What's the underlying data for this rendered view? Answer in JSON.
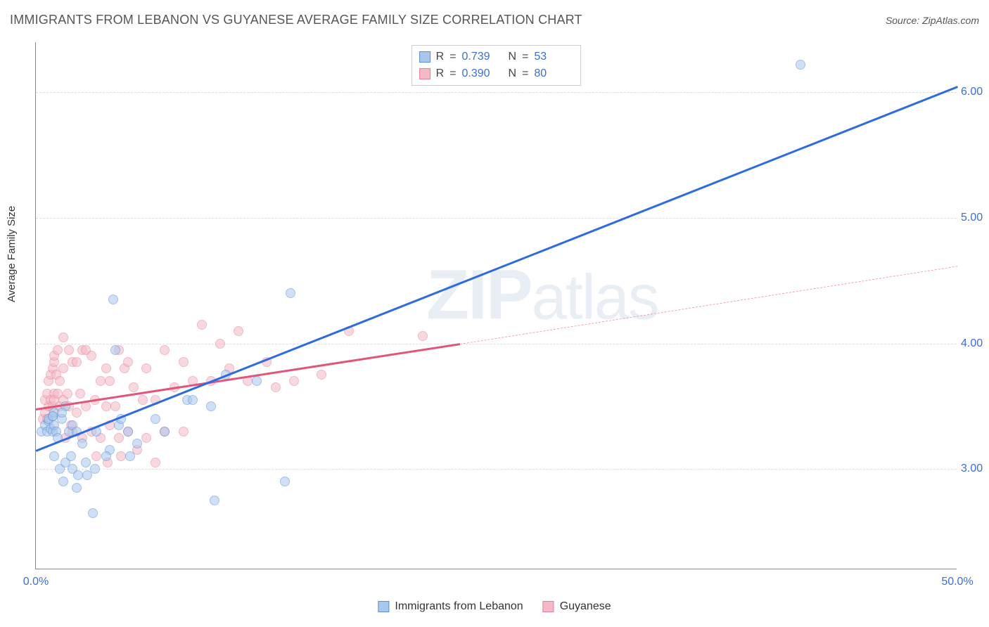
{
  "title": "IMMIGRANTS FROM LEBANON VS GUYANESE AVERAGE FAMILY SIZE CORRELATION CHART",
  "source_prefix": "Source: ",
  "source_name": "ZipAtlas.com",
  "y_axis_label": "Average Family Size",
  "watermark": "ZIPatlas",
  "chart": {
    "type": "scatter",
    "background_color": "#ffffff",
    "grid_color": "#dddddd",
    "axis_color": "#888888",
    "xlim": [
      0,
      50
    ],
    "ylim": [
      2.2,
      6.4
    ],
    "x_ticks": [
      {
        "v": 0,
        "label": "0.0%"
      },
      {
        "v": 50,
        "label": "50.0%"
      }
    ],
    "y_ticks": [
      {
        "v": 3.0,
        "label": "3.00"
      },
      {
        "v": 4.0,
        "label": "4.00"
      },
      {
        "v": 5.0,
        "label": "5.00"
      },
      {
        "v": 6.0,
        "label": "6.00"
      }
    ],
    "tick_color": "#3b6fd6",
    "tick_fontsize": 16
  },
  "series": [
    {
      "name": "Immigrants from Lebanon",
      "color_fill": "#a9c6ed",
      "color_stroke": "#5b8fd8",
      "marker_size": 14,
      "R": "0.739",
      "N": "53",
      "trend": {
        "x1": 0,
        "y1": 3.15,
        "x2": 50,
        "y2": 6.05,
        "color": "#2d6cdf",
        "width": 2.5,
        "dashed": false
      },
      "points": [
        [
          0.3,
          3.3
        ],
        [
          0.5,
          3.35
        ],
        [
          0.6,
          3.3
        ],
        [
          0.7,
          3.38
        ],
        [
          0.8,
          3.32
        ],
        [
          0.9,
          3.3
        ],
        [
          1.0,
          3.35
        ],
        [
          1.1,
          3.3
        ],
        [
          1.2,
          3.25
        ],
        [
          0.7,
          3.4
        ],
        [
          0.9,
          3.42
        ],
        [
          1.4,
          3.4
        ],
        [
          1.0,
          3.45
        ],
        [
          1.6,
          3.5
        ],
        [
          1.8,
          3.3
        ],
        [
          2.0,
          3.35
        ],
        [
          2.5,
          3.2
        ],
        [
          2.2,
          3.3
        ],
        [
          1.0,
          3.1
        ],
        [
          1.3,
          3.0
        ],
        [
          1.6,
          3.05
        ],
        [
          2.0,
          3.0
        ],
        [
          2.3,
          2.95
        ],
        [
          2.8,
          2.95
        ],
        [
          3.2,
          3.0
        ],
        [
          4.0,
          3.15
        ],
        [
          4.5,
          3.35
        ],
        [
          3.1,
          2.65
        ],
        [
          2.2,
          2.85
        ],
        [
          1.5,
          2.9
        ],
        [
          4.2,
          4.35
        ],
        [
          8.2,
          3.55
        ],
        [
          8.5,
          3.55
        ],
        [
          9.5,
          3.5
        ],
        [
          10.3,
          3.75
        ],
        [
          12.0,
          3.7
        ],
        [
          13.8,
          4.4
        ],
        [
          13.5,
          2.9
        ],
        [
          9.7,
          2.75
        ],
        [
          5.0,
          3.3
        ],
        [
          5.5,
          3.2
        ],
        [
          6.5,
          3.4
        ],
        [
          7.0,
          3.3
        ],
        [
          3.8,
          3.1
        ],
        [
          3.3,
          3.3
        ],
        [
          4.3,
          3.95
        ],
        [
          1.4,
          3.45
        ],
        [
          0.9,
          3.42
        ],
        [
          1.9,
          3.1
        ],
        [
          2.7,
          3.05
        ],
        [
          5.1,
          3.1
        ],
        [
          4.6,
          3.4
        ],
        [
          41.5,
          6.22
        ]
      ]
    },
    {
      "name": "Guyanese",
      "color_fill": "#f4b9c5",
      "color_stroke": "#e87f98",
      "marker_size": 14,
      "R": "0.390",
      "N": "80",
      "trend_solid": {
        "x1": 0,
        "y1": 3.48,
        "x2": 23,
        "y2": 4.0,
        "color": "#e25578",
        "width": 2.5,
        "dashed": false
      },
      "trend_dashed": {
        "x1": 23,
        "y1": 4.0,
        "x2": 50,
        "y2": 4.62,
        "color": "#f2a3b6",
        "width": 1.5,
        "dashed": true
      },
      "points": [
        [
          0.4,
          3.4
        ],
        [
          0.5,
          3.45
        ],
        [
          0.6,
          3.4
        ],
        [
          0.7,
          3.5
        ],
        [
          0.5,
          3.55
        ],
        [
          0.6,
          3.6
        ],
        [
          0.8,
          3.55
        ],
        [
          0.9,
          3.5
        ],
        [
          1.0,
          3.6
        ],
        [
          1.0,
          3.55
        ],
        [
          1.2,
          3.6
        ],
        [
          0.7,
          3.7
        ],
        [
          0.8,
          3.75
        ],
        [
          0.9,
          3.8
        ],
        [
          1.0,
          3.85
        ],
        [
          1.1,
          3.75
        ],
        [
          1.3,
          3.7
        ],
        [
          1.5,
          3.8
        ],
        [
          1.3,
          3.5
        ],
        [
          1.5,
          3.55
        ],
        [
          1.7,
          3.6
        ],
        [
          1.8,
          3.5
        ],
        [
          1.0,
          3.9
        ],
        [
          1.2,
          3.95
        ],
        [
          1.5,
          4.05
        ],
        [
          1.8,
          3.95
        ],
        [
          2.0,
          3.85
        ],
        [
          2.2,
          3.85
        ],
        [
          2.5,
          3.95
        ],
        [
          2.7,
          3.95
        ],
        [
          3.0,
          3.9
        ],
        [
          3.5,
          3.7
        ],
        [
          3.8,
          3.8
        ],
        [
          4.0,
          3.7
        ],
        [
          4.5,
          3.95
        ],
        [
          4.8,
          3.8
        ],
        [
          5.0,
          3.85
        ],
        [
          5.3,
          3.65
        ],
        [
          5.8,
          3.55
        ],
        [
          6.0,
          3.8
        ],
        [
          6.5,
          3.55
        ],
        [
          7.0,
          3.95
        ],
        [
          7.5,
          3.65
        ],
        [
          8.0,
          3.85
        ],
        [
          8.5,
          3.7
        ],
        [
          9.0,
          4.15
        ],
        [
          9.5,
          3.7
        ],
        [
          10.0,
          4.0
        ],
        [
          10.5,
          3.8
        ],
        [
          11.0,
          4.1
        ],
        [
          11.5,
          3.7
        ],
        [
          12.5,
          3.85
        ],
        [
          13.0,
          3.65
        ],
        [
          14.0,
          3.7
        ],
        [
          15.5,
          3.75
        ],
        [
          17.0,
          4.1
        ],
        [
          21.0,
          4.06
        ],
        [
          2.0,
          3.3
        ],
        [
          2.5,
          3.25
        ],
        [
          3.0,
          3.3
        ],
        [
          3.5,
          3.25
        ],
        [
          4.0,
          3.35
        ],
        [
          4.5,
          3.25
        ],
        [
          5.0,
          3.3
        ],
        [
          5.5,
          3.15
        ],
        [
          6.0,
          3.25
        ],
        [
          6.5,
          3.05
        ],
        [
          7.0,
          3.3
        ],
        [
          8.0,
          3.3
        ],
        [
          2.2,
          3.45
        ],
        [
          2.7,
          3.5
        ],
        [
          3.2,
          3.55
        ],
        [
          3.8,
          3.5
        ],
        [
          4.3,
          3.5
        ],
        [
          1.6,
          3.25
        ],
        [
          1.9,
          3.35
        ],
        [
          2.4,
          3.6
        ],
        [
          3.3,
          3.1
        ],
        [
          3.9,
          3.05
        ],
        [
          4.6,
          3.1
        ]
      ]
    }
  ],
  "stats_labels": {
    "R": "R",
    "eq": "=",
    "N": "N"
  },
  "bottom_legend": [
    {
      "label": "Immigrants from Lebanon",
      "fill": "#a9c6ed",
      "stroke": "#5b8fd8"
    },
    {
      "label": "Guyanese",
      "fill": "#f4b9c5",
      "stroke": "#e87f98"
    }
  ]
}
